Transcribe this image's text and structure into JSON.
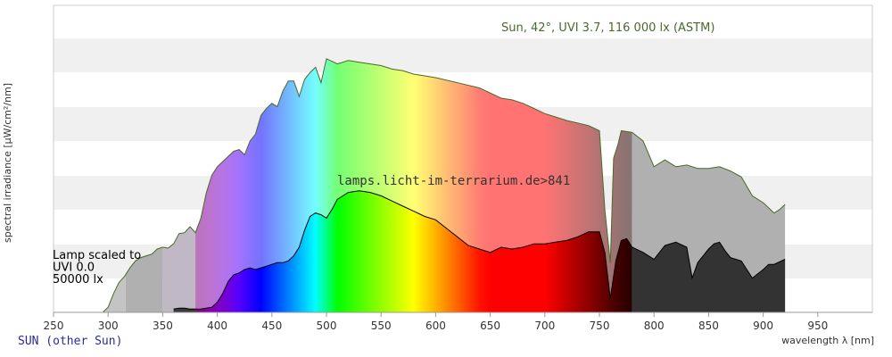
{
  "chart_data": {
    "type": "area",
    "xlabel": "wavelength λ [nm]",
    "ylabel": "spectral irradiance [µW/cm²/nm]",
    "xlim": [
      250,
      1000
    ],
    "x_ticks": [
      250,
      300,
      350,
      400,
      450,
      500,
      550,
      600,
      650,
      700,
      750,
      800,
      850,
      900,
      950
    ],
    "grid": "horizontal bands",
    "sun_label": "Sun, 42°, UVI 3.7, 116 000 lx (ASTM)",
    "watermark": "lamps.licht-im-terrarium.de>841",
    "lamp_label": [
      "Lamp scaled to",
      "UVI 0.0",
      "50000 lx"
    ],
    "series": [
      {
        "name": "Sun, 42°, UVI 3.7, 116 000 lx (ASTM)",
        "line_color": "#4a6a2a",
        "x": [
          295,
          300,
          305,
          310,
          315,
          320,
          325,
          330,
          335,
          340,
          345,
          350,
          355,
          360,
          365,
          370,
          375,
          380,
          385,
          390,
          395,
          400,
          405,
          410,
          415,
          420,
          425,
          430,
          435,
          440,
          445,
          450,
          455,
          460,
          465,
          470,
          475,
          480,
          485,
          490,
          495,
          500,
          510,
          520,
          530,
          540,
          550,
          560,
          570,
          580,
          590,
          600,
          620,
          640,
          650,
          660,
          670,
          680,
          690,
          700,
          710,
          720,
          740,
          750,
          755,
          760,
          763,
          767,
          770,
          780,
          790,
          800,
          810,
          820,
          830,
          840,
          850,
          860,
          870,
          880,
          890,
          900,
          910,
          915,
          920
        ],
        "values": [
          0,
          6,
          22,
          35,
          42,
          52,
          60,
          64,
          66,
          68,
          74,
          76,
          75,
          80,
          92,
          93,
          100,
          93,
          110,
          140,
          160,
          170,
          176,
          182,
          188,
          190,
          184,
          200,
          208,
          230,
          238,
          244,
          240,
          258,
          270,
          270,
          252,
          272,
          280,
          286,
          268,
          296,
          290,
          294,
          292,
          290,
          288,
          284,
          282,
          278,
          276,
          274,
          268,
          262,
          256,
          250,
          248,
          244,
          238,
          232,
          228,
          224,
          218,
          212,
          120,
          58,
          180,
          196,
          212,
          210,
          200,
          170,
          178,
          170,
          172,
          168,
          168,
          170,
          165,
          158,
          136,
          128,
          116,
          120,
          126
        ]
      },
      {
        "name": "Lamp",
        "x": [
          360,
          365,
          370,
          375,
          380,
          385,
          390,
          395,
          400,
          405,
          410,
          415,
          420,
          425,
          430,
          435,
          440,
          445,
          450,
          455,
          460,
          465,
          470,
          475,
          480,
          485,
          490,
          495,
          500,
          505,
          510,
          520,
          530,
          540,
          550,
          560,
          570,
          580,
          590,
          600,
          610,
          620,
          630,
          640,
          650,
          660,
          670,
          680,
          690,
          700,
          710,
          720,
          730,
          740,
          750,
          755,
          760,
          765,
          770,
          775,
          780,
          790,
          800,
          810,
          820,
          830,
          835,
          840,
          845,
          850,
          855,
          860,
          865,
          870,
          880,
          890,
          900,
          905,
          910,
          920
        ],
        "values": [
          4,
          5,
          5,
          4,
          4,
          4,
          5,
          6,
          12,
          22,
          36,
          44,
          46,
          50,
          52,
          50,
          52,
          54,
          56,
          58,
          58,
          60,
          66,
          76,
          96,
          112,
          116,
          114,
          110,
          120,
          132,
          140,
          142,
          140,
          136,
          130,
          124,
          118,
          112,
          108,
          98,
          88,
          78,
          74,
          70,
          76,
          74,
          76,
          80,
          80,
          82,
          84,
          88,
          94,
          94,
          70,
          16,
          60,
          84,
          86,
          76,
          70,
          62,
          78,
          82,
          76,
          40,
          58,
          66,
          74,
          80,
          82,
          72,
          64,
          60,
          40,
          50,
          56,
          56,
          62
        ]
      }
    ]
  },
  "footer": {
    "link_text": "SUN (other Sun)"
  }
}
